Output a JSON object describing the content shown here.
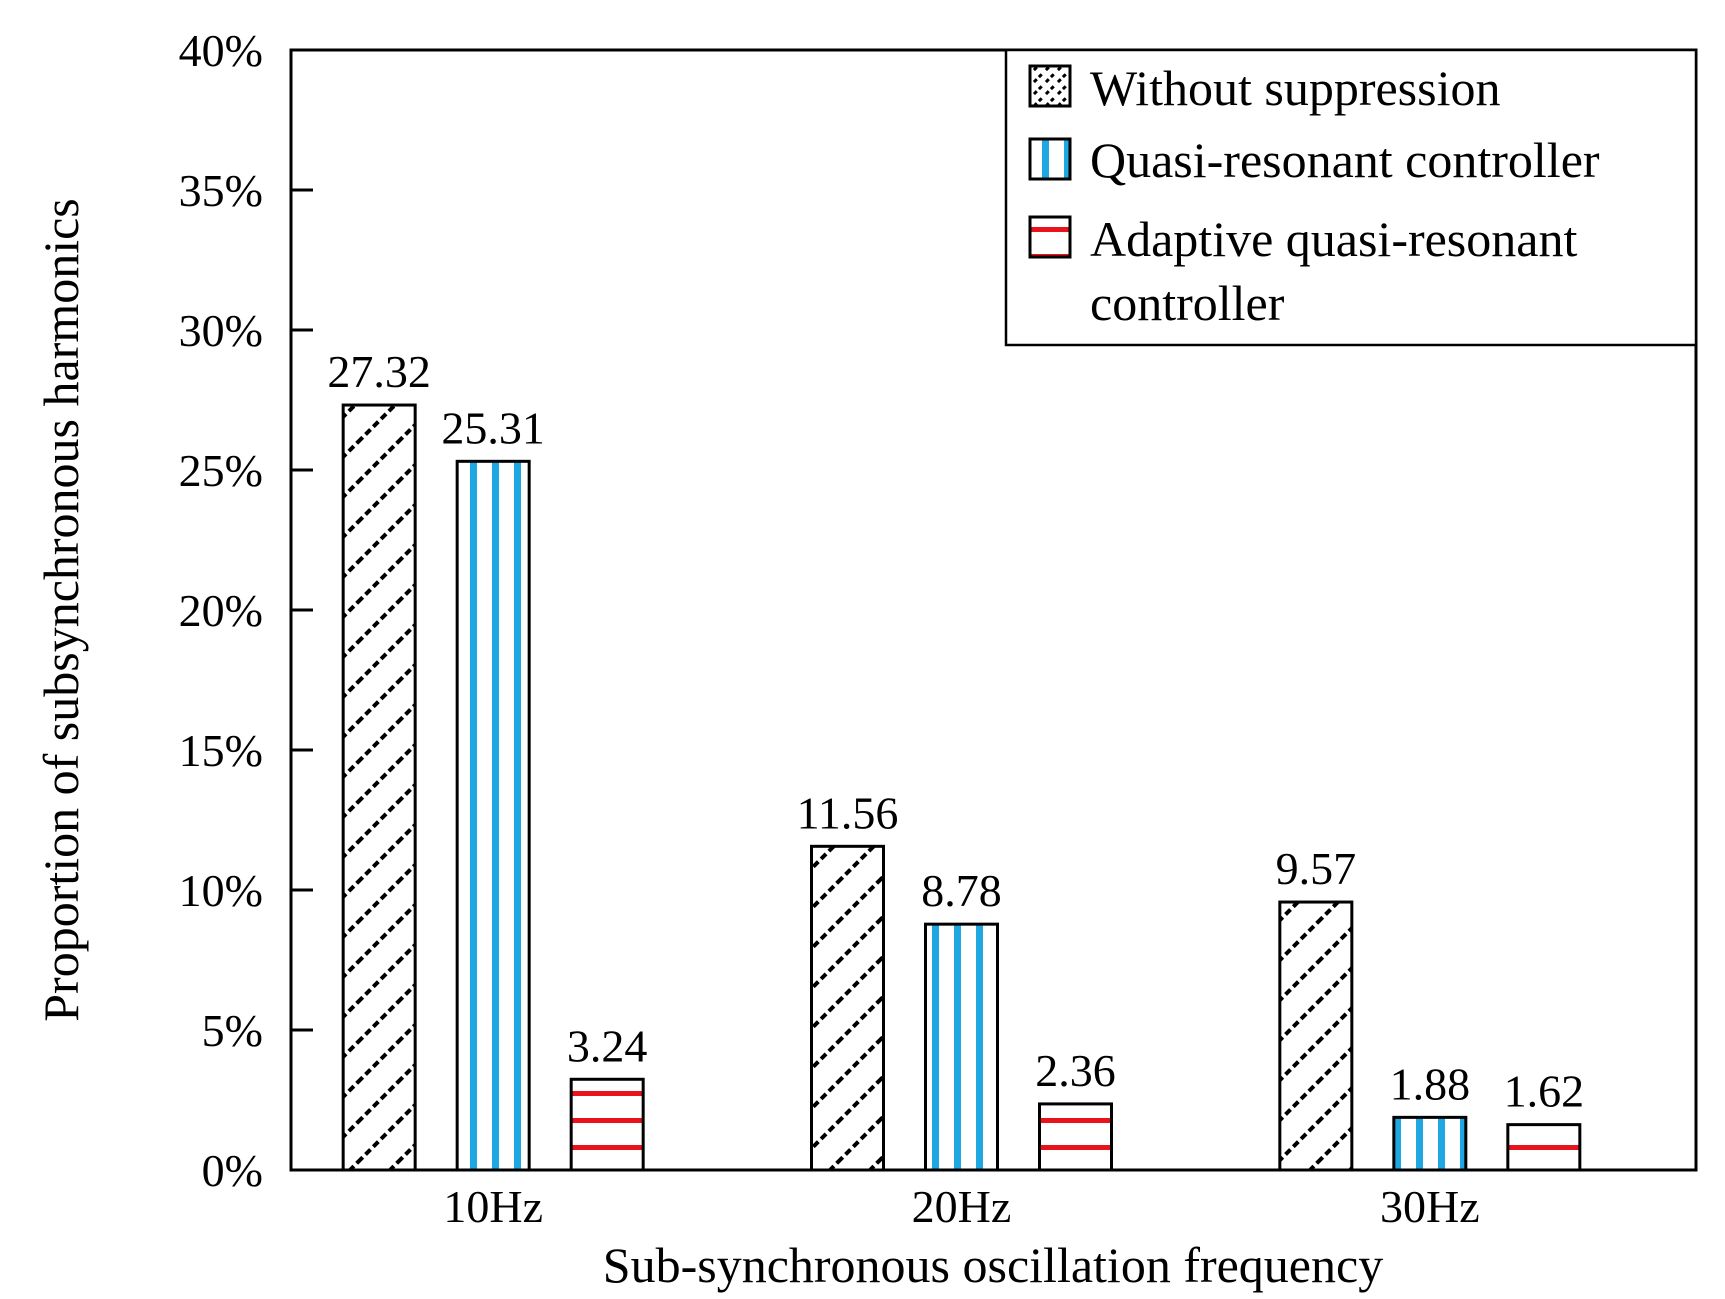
{
  "chart_data": {
    "type": "bar",
    "title": "",
    "xlabel": "Sub-synchronous oscillation frequency",
    "ylabel": "Proportion of subsynchronous harmonics",
    "categories": [
      "10Hz",
      "20Hz",
      "30Hz"
    ],
    "ylim": [
      0,
      40
    ],
    "yticks": [
      0,
      5,
      10,
      15,
      20,
      25,
      30,
      35,
      40
    ],
    "ytick_labels": [
      "0%",
      "5%",
      "10%",
      "15%",
      "20%",
      "25%",
      "30%",
      "35%",
      "40%"
    ],
    "grid": false,
    "legend_position": "top-right",
    "series": [
      {
        "name": "Without suppression",
        "pattern": "diagonal-hatch",
        "color": "#000000",
        "values": [
          27.32,
          11.56,
          9.57
        ],
        "value_labels": [
          "27.32",
          "11.56",
          "9.57"
        ]
      },
      {
        "name": "Quasi-resonant controller",
        "pattern": "vertical-lines",
        "color": "#1ea7e1",
        "values": [
          25.31,
          8.78,
          1.88
        ],
        "value_labels": [
          "25.31",
          "8.78",
          "1.88"
        ]
      },
      {
        "name": "Adaptive quasi-resonant controller",
        "legend_lines": [
          "Adaptive quasi-resonant",
          "controller"
        ],
        "pattern": "horizontal-lines",
        "color": "#e8141c",
        "values": [
          3.24,
          2.36,
          1.62
        ],
        "value_labels": [
          "3.24",
          "2.36",
          "1.62"
        ]
      }
    ]
  }
}
